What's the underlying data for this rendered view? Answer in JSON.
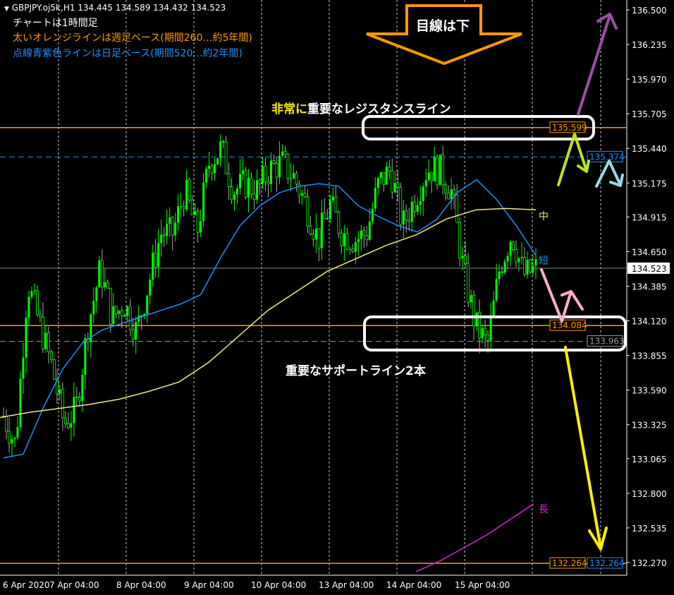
{
  "header": {
    "symbol_line": "GBPJPY.oj5k,H1  134.445 134.589 134.432 134.523",
    "note1": "チャートは1時間足",
    "note2": "太いオレンジラインは週足ベース(期間260…約5年間)",
    "note3": "点線青紫色ラインは日足ベース(期間520…約2年間)"
  },
  "annotations": {
    "top_arrow": "目線は下",
    "resistance_a": "非常に",
    "resistance_b": "重要なレジスタンスライン",
    "support": "重要なサポートライン2本",
    "ma_mid": "中",
    "ma_short": "短",
    "ma_long": "長"
  },
  "colors": {
    "bull": "#00ff00",
    "orange": "#ff9900",
    "blue": "#1e90ff",
    "mid_ma": "#f0e68c",
    "long_ma": "#e020e0",
    "purple": "#9b4fa6",
    "green_arrow": "#b5e61d",
    "lightblue_arrow": "#99d9ea",
    "pink_arrow": "#ffaec9",
    "yellow_arrow": "#ffee00"
  },
  "chart_data": {
    "type": "candlestick",
    "ylim": [
      132.14,
      136.58
    ],
    "y_ticks": [
      "136.500",
      "136.235",
      "135.970",
      "135.705",
      "135.440",
      "135.175",
      "134.915",
      "134.650",
      "134.385",
      "134.120",
      "133.855",
      "133.590",
      "133.325",
      "133.065",
      "132.800",
      "132.535",
      "132.270"
    ],
    "x_ticks": [
      "6 Apr 2020",
      "7 Apr 04:00",
      "8 Apr 04:00",
      "9 Apr 04:00",
      "10 Apr 04:00",
      "13 Apr 04:00",
      "14 Apr 04:00",
      "15 Apr 04:00"
    ],
    "current_price": "134.523",
    "close_path": [
      133.39,
      133.17,
      134.41,
      134.09,
      133.77,
      133.33,
      133.44,
      134.09,
      134.52,
      134.14,
      134.25,
      134.04,
      134.41,
      134.79,
      134.79,
      135.12,
      134.79,
      135.33,
      135.44,
      135.12,
      135.17,
      135.12,
      135.28,
      135.33,
      135.22,
      135.01,
      134.74,
      135.01,
      134.79,
      134.74,
      134.79,
      135.17,
      135.28,
      134.85,
      135.06,
      135.28,
      135.28,
      135.12,
      134.52,
      134.09,
      133.93,
      134.52,
      134.79,
      134.47,
      134.52
    ],
    "ma_short": [
      133.07,
      133.1,
      133.45,
      133.75,
      133.95,
      134.05,
      134.1,
      134.15,
      134.2,
      134.25,
      134.32,
      134.6,
      134.85,
      135.0,
      135.1,
      135.15,
      135.17,
      135.15,
      135.0,
      134.92,
      134.85,
      134.8,
      134.9,
      135.1,
      135.2,
      135.05,
      134.85,
      134.62
    ],
    "ma_mid": [
      133.38,
      133.42,
      133.45,
      133.48,
      133.52,
      133.58,
      133.65,
      133.8,
      134.0,
      134.2,
      134.35,
      134.5,
      134.6,
      134.7,
      134.78,
      134.9,
      134.97,
      134.98,
      134.97
    ],
    "ma_long": [
      132.2,
      132.28,
      132.38,
      132.48,
      132.6,
      132.72
    ],
    "levels": [
      {
        "price": 135.599,
        "label": "135.599",
        "style": "orange"
      },
      {
        "price": 135.374,
        "label": "135.374",
        "style": "blue-dashed"
      },
      {
        "price": 134.084,
        "label": "134.084",
        "style": "orange"
      },
      {
        "price": 133.963,
        "label": "133.963",
        "style": "gray-dashed"
      },
      {
        "price": 132.264,
        "label": "132.264",
        "style": "orange"
      }
    ]
  }
}
